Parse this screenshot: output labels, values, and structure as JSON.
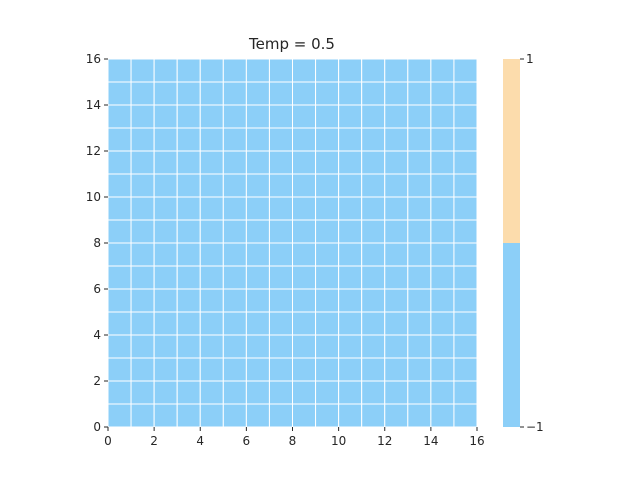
{
  "chart_data": {
    "type": "heatmap",
    "title": "Temp = 0.5",
    "xlabel": "",
    "ylabel": "",
    "grid": true,
    "xlim": [
      0,
      16
    ],
    "ylim": [
      0,
      16
    ],
    "x_ticks": [
      "0",
      "2",
      "4",
      "6",
      "8",
      "10",
      "12",
      "14",
      "16"
    ],
    "y_ticks": [
      "0",
      "2",
      "4",
      "6",
      "8",
      "10",
      "12",
      "14",
      "16"
    ],
    "n_rows": 16,
    "n_cols": 16,
    "values": [
      [
        -1,
        -1,
        -1,
        -1,
        -1,
        -1,
        -1,
        -1,
        -1,
        -1,
        -1,
        -1,
        -1,
        -1,
        -1,
        -1
      ],
      [
        -1,
        -1,
        -1,
        -1,
        -1,
        -1,
        -1,
        -1,
        -1,
        -1,
        -1,
        -1,
        -1,
        -1,
        -1,
        -1
      ],
      [
        -1,
        -1,
        -1,
        -1,
        -1,
        -1,
        -1,
        -1,
        -1,
        -1,
        -1,
        -1,
        -1,
        -1,
        -1,
        -1
      ],
      [
        -1,
        -1,
        -1,
        -1,
        -1,
        -1,
        -1,
        -1,
        -1,
        -1,
        -1,
        -1,
        -1,
        -1,
        -1,
        -1
      ],
      [
        -1,
        -1,
        -1,
        -1,
        -1,
        -1,
        -1,
        -1,
        -1,
        -1,
        -1,
        -1,
        -1,
        -1,
        -1,
        -1
      ],
      [
        -1,
        -1,
        -1,
        -1,
        -1,
        -1,
        -1,
        -1,
        -1,
        -1,
        -1,
        -1,
        -1,
        -1,
        -1,
        -1
      ],
      [
        -1,
        -1,
        -1,
        -1,
        -1,
        -1,
        -1,
        -1,
        -1,
        -1,
        -1,
        -1,
        -1,
        -1,
        -1,
        -1
      ],
      [
        -1,
        -1,
        -1,
        -1,
        -1,
        -1,
        -1,
        -1,
        -1,
        -1,
        -1,
        -1,
        -1,
        -1,
        -1,
        -1
      ],
      [
        -1,
        -1,
        -1,
        -1,
        -1,
        -1,
        -1,
        -1,
        -1,
        -1,
        -1,
        -1,
        -1,
        -1,
        -1,
        -1
      ],
      [
        -1,
        -1,
        -1,
        -1,
        -1,
        -1,
        -1,
        -1,
        -1,
        -1,
        -1,
        -1,
        -1,
        -1,
        -1,
        -1
      ],
      [
        -1,
        -1,
        -1,
        -1,
        -1,
        -1,
        -1,
        -1,
        -1,
        -1,
        -1,
        -1,
        -1,
        -1,
        -1,
        -1
      ],
      [
        -1,
        -1,
        -1,
        -1,
        -1,
        -1,
        -1,
        -1,
        -1,
        -1,
        -1,
        -1,
        -1,
        -1,
        -1,
        -1
      ],
      [
        -1,
        -1,
        -1,
        -1,
        -1,
        -1,
        -1,
        -1,
        -1,
        -1,
        -1,
        -1,
        -1,
        -1,
        -1,
        -1
      ],
      [
        -1,
        -1,
        -1,
        -1,
        -1,
        -1,
        -1,
        -1,
        -1,
        -1,
        -1,
        -1,
        -1,
        -1,
        -1,
        -1
      ],
      [
        -1,
        -1,
        -1,
        -1,
        -1,
        -1,
        -1,
        -1,
        -1,
        -1,
        -1,
        -1,
        -1,
        -1,
        -1,
        -1
      ],
      [
        -1,
        -1,
        -1,
        -1,
        -1,
        -1,
        -1,
        -1,
        -1,
        -1,
        -1,
        -1,
        -1,
        -1,
        -1,
        -1
      ]
    ],
    "colorbar": {
      "min": -1,
      "max": 1,
      "tick_labels": [
        "−1",
        "1"
      ],
      "colors": {
        "-1": "#8ccff8",
        "1": "#fcdcac"
      }
    },
    "cell_edge_color": "#ffffff"
  }
}
